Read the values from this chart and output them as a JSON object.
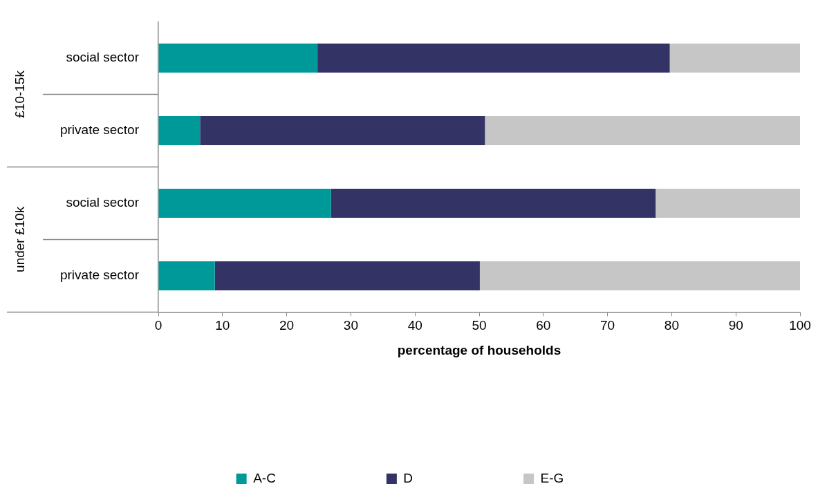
{
  "chart_data": {
    "type": "bar",
    "orientation": "horizontal",
    "stacked": true,
    "categories": [
      "social sector",
      "private sector",
      "social sector",
      "private sector"
    ],
    "series": [
      {
        "name": "A-C",
        "color": "#009999",
        "values": [
          24.8,
          6.5,
          26.9,
          8.8
        ]
      },
      {
        "name": "D",
        "color": "#333366",
        "values": [
          54.9,
          44.4,
          50.6,
          41.3
        ]
      },
      {
        "name": "E-G",
        "color": "#c6c6c6",
        "values": [
          20.3,
          49.1,
          22.5,
          49.9
        ]
      }
    ],
    "xlim": [
      0,
      100
    ],
    "xticks": [
      0,
      10,
      20,
      30,
      40,
      50,
      60,
      70,
      80,
      90,
      100
    ],
    "xlabel": "percentage of households",
    "annotations": [
      "£10-15k",
      "under £10k"
    ],
    "legend": "bottom",
    "grid": false
  }
}
